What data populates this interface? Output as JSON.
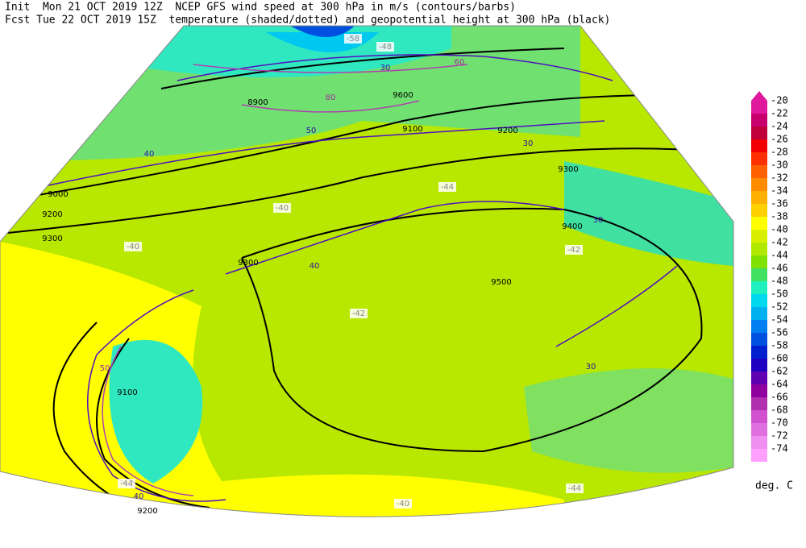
{
  "header": {
    "line1": "Init  Mon 21 OCT 2019 12Z  NCEP GFS wind speed at 300 hPa in m/s (contours/barbs)",
    "line2": "Fcst Tue 22 OCT 2019 15Z  temperature (shaded/dotted) and geopotential height at 300 hPa (black)"
  },
  "legend": {
    "levels": [
      "-20",
      "-22",
      "-24",
      "-26",
      "-28",
      "-30",
      "-32",
      "-34",
      "-36",
      "-38",
      "-40",
      "-42",
      "-44",
      "-46",
      "-48",
      "-50",
      "-52",
      "-54",
      "-56",
      "-58",
      "-60",
      "-62",
      "-64",
      "-66",
      "-68",
      "-70",
      "-72",
      "-74"
    ],
    "colors": [
      "#e0189c",
      "#c8006e",
      "#c0003a",
      "#f00000",
      "#ff3000",
      "#ff6000",
      "#ff8c00",
      "#ffb000",
      "#ffd000",
      "#ffff00",
      "#d8f000",
      "#b0e800",
      "#80e000",
      "#40e060",
      "#20f0c0",
      "#00d8f0",
      "#00b0f0",
      "#0080f0",
      "#0050e0",
      "#0020d0",
      "#2000c0",
      "#6000b0",
      "#9000a0",
      "#b030b0",
      "#d050d0",
      "#e070e0",
      "#f090f0",
      "#ffa0ff"
    ],
    "unit": "deg. C"
  },
  "map": {
    "labels": [
      {
        "text": "9600",
        "color": "#000000"
      },
      {
        "text": "9500",
        "color": "#000000"
      },
      {
        "text": "9400",
        "color": "#000000"
      },
      {
        "text": "9300",
        "color": "#000000"
      },
      {
        "text": "9300",
        "color": "#000000"
      },
      {
        "text": "9200",
        "color": "#000000"
      },
      {
        "text": "9200",
        "color": "#000000"
      },
      {
        "text": "9100",
        "color": "#000000"
      },
      {
        "text": "9000",
        "color": "#000000"
      },
      {
        "text": "8900",
        "color": "#000000"
      },
      {
        "text": "9300",
        "color": "#000000"
      },
      {
        "text": "9200",
        "color": "#000000"
      },
      {
        "text": "9100",
        "color": "#000000"
      },
      {
        "text": "30",
        "color": "#3010a0"
      },
      {
        "text": "40",
        "color": "#3010a0"
      },
      {
        "text": "50",
        "color": "#3010a0"
      },
      {
        "text": "60",
        "color": "#a030a0"
      },
      {
        "text": "80",
        "color": "#a030a0"
      },
      {
        "text": "30",
        "color": "#3010a0"
      },
      {
        "text": "40",
        "color": "#3010a0"
      },
      {
        "text": "30",
        "color": "#3010a0"
      },
      {
        "text": "30",
        "color": "#3010a0"
      },
      {
        "text": "50",
        "color": "#a030a0"
      },
      {
        "text": "40",
        "color": "#3010a0"
      },
      {
        "text": "-40",
        "color": "#ffffff"
      },
      {
        "text": "-42",
        "color": "#ffffff"
      },
      {
        "text": "-44",
        "color": "#ffffff"
      },
      {
        "text": "-44",
        "color": "#ffffff"
      },
      {
        "text": "-40",
        "color": "#ffffff"
      },
      {
        "text": "-42",
        "color": "#ffffff"
      },
      {
        "text": "-48",
        "color": "#ffffff"
      },
      {
        "text": "-58",
        "color": "#ffffff"
      },
      {
        "text": "-40",
        "color": "#ffffff"
      },
      {
        "text": "-44",
        "color": "#ffffff"
      }
    ]
  }
}
